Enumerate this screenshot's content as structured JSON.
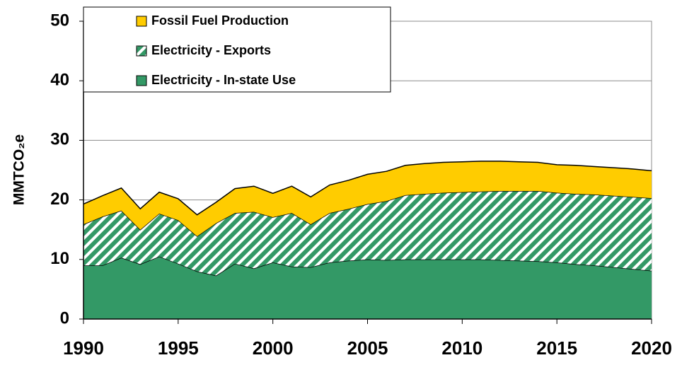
{
  "chart_data": {
    "type": "stacked-area",
    "y_label": "MMTCO₂e",
    "x": [
      1990,
      1991,
      1992,
      1993,
      1994,
      1995,
      1996,
      1997,
      1998,
      1999,
      2000,
      2001,
      2002,
      2003,
      2004,
      2005,
      2006,
      2007,
      2008,
      2009,
      2010,
      2011,
      2012,
      2013,
      2014,
      2015,
      2016,
      2017,
      2018,
      2019,
      2020
    ],
    "series": [
      {
        "name": "Electricity - In-state Use",
        "color": "#339966",
        "hatch": false,
        "values": [
          9.0,
          9.0,
          10.3,
          9.2,
          10.5,
          9.3,
          8.0,
          7.3,
          9.3,
          8.5,
          9.5,
          8.8,
          8.7,
          9.5,
          9.8,
          10.0,
          9.9,
          10.0,
          10.0,
          10.0,
          10.0,
          10.0,
          9.9,
          9.8,
          9.7,
          9.5,
          9.2,
          9.0,
          8.7,
          8.4,
          8.1
        ]
      },
      {
        "name": "Electricity - Exports",
        "color": "#339966",
        "hatch": true,
        "values": [
          6.9,
          8.2,
          7.9,
          5.8,
          7.2,
          7.3,
          5.9,
          8.8,
          8.5,
          9.5,
          7.6,
          9.0,
          7.2,
          8.3,
          8.7,
          9.3,
          9.9,
          10.8,
          11.0,
          11.2,
          11.3,
          11.4,
          11.6,
          11.7,
          11.8,
          11.7,
          11.8,
          11.9,
          12.0,
          12.1,
          12.2
        ]
      },
      {
        "name": "Fossil Fuel Production",
        "color": "#ffcc00",
        "hatch": false,
        "values": [
          3.4,
          3.5,
          3.8,
          3.5,
          3.6,
          3.6,
          3.6,
          3.5,
          4.1,
          4.3,
          4.0,
          4.5,
          4.6,
          4.7,
          4.8,
          5.0,
          5.0,
          5.0,
          5.1,
          5.1,
          5.1,
          5.1,
          5.0,
          4.9,
          4.8,
          4.7,
          4.8,
          4.7,
          4.7,
          4.7,
          4.6
        ]
      }
    ],
    "xlim": [
      1990,
      2020
    ],
    "xticks": [
      1990,
      1995,
      2000,
      2005,
      2010,
      2015,
      2020
    ],
    "ylim": [
      0,
      50
    ],
    "yticks": [
      0,
      10,
      20,
      30,
      40,
      50
    ],
    "grid": true,
    "legend": "upper left"
  }
}
